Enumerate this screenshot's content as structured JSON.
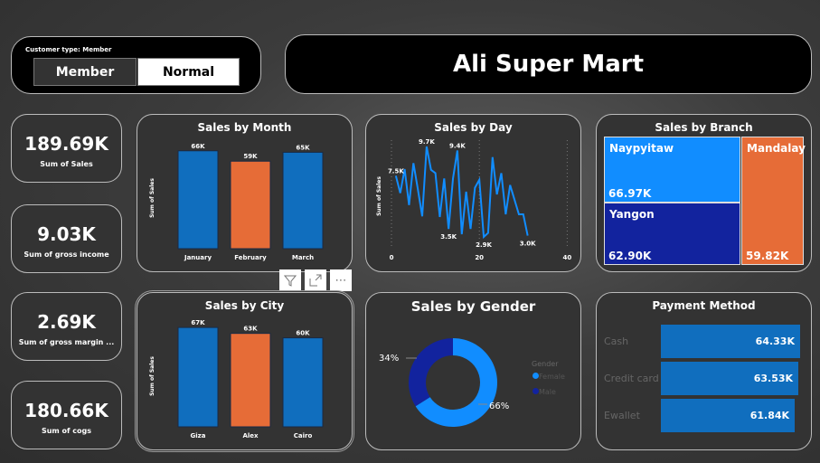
{
  "slicer": {
    "title": "Customer type: Member",
    "options": [
      "Member",
      "Normal"
    ],
    "selected": "Member"
  },
  "header": {
    "title": "Ali Super Mart"
  },
  "kpis": [
    {
      "value": "189.69K",
      "label": "Sum of Sales"
    },
    {
      "value": "9.03K",
      "label": "Sum of gross income"
    },
    {
      "value": "2.69K",
      "label": "Sum of gross margin ..."
    },
    {
      "value": "180.66K",
      "label": "Sum of cogs"
    }
  ],
  "colors": {
    "blue": "#106EBE",
    "orange": "#E66C37",
    "lightblue": "#118DFF",
    "navy": "#12239E"
  },
  "visual_toolbar": {
    "icons": [
      "filter-icon",
      "focus-mode-icon",
      "more-options-icon"
    ]
  },
  "chart_data": [
    {
      "type": "bar",
      "title": "Sales by Month",
      "ylabel": "Sum of Sales",
      "categories": [
        "January",
        "February",
        "March"
      ],
      "values": [
        66,
        59,
        65
      ],
      "labels": [
        "66K",
        "59K",
        "65K"
      ],
      "unit": "K"
    },
    {
      "type": "bar",
      "title": "Sales by City",
      "ylabel": "Sum of Sales",
      "categories": [
        "Giza",
        "Alex",
        "Cairo"
      ],
      "values": [
        67,
        63,
        60
      ],
      "labels": [
        "67K",
        "63K",
        "60K"
      ],
      "unit": "K"
    },
    {
      "type": "line",
      "title": "Sales by Day",
      "ylabel": "Sum of Sales",
      "xticks": [
        "0",
        "20",
        "40"
      ],
      "xlim": [
        0,
        40
      ],
      "x": [
        1,
        2,
        3,
        4,
        5,
        6,
        7,
        8,
        9,
        10,
        11,
        12,
        13,
        14,
        15,
        16,
        17,
        18,
        19,
        20,
        21,
        22,
        23,
        24,
        25,
        26,
        27,
        28,
        29,
        30,
        31
      ],
      "y": [
        7.5,
        6.2,
        8.0,
        5.3,
        8.45,
        6.5,
        4.45,
        9.7,
        7.95,
        7.7,
        4.4,
        7.3,
        3.5,
        7.3,
        9.4,
        3.1,
        6.3,
        3.5,
        6.6,
        7.2,
        2.9,
        3.2,
        8.9,
        6.1,
        7.7,
        4.6,
        6.8,
        5.7,
        4.6,
        4.6,
        3.0
      ],
      "unit": "K",
      "annotations": [
        {
          "x": 1,
          "label": "7.5K"
        },
        {
          "x": 8,
          "label": "9.7K"
        },
        {
          "x": 13,
          "label": "3.5K"
        },
        {
          "x": 15,
          "label": "9.4K"
        },
        {
          "x": 21,
          "label": "2.9K"
        },
        {
          "x": 31,
          "label": "3.0K"
        }
      ]
    },
    {
      "type": "pie",
      "title": "Sales by Gender",
      "legend_title": "Gender",
      "legend": "right",
      "slices": [
        {
          "name": "Female",
          "value": 66,
          "label": "66%"
        },
        {
          "name": "Male",
          "value": 34,
          "label": "34%"
        }
      ]
    },
    {
      "type": "treemap",
      "title": "Sales by Branch",
      "items": [
        {
          "name": "Naypyitaw",
          "value": "66.97K"
        },
        {
          "name": "Yangon",
          "value": "62.90K"
        },
        {
          "name": "Mandalay",
          "value": "59.82K"
        }
      ]
    },
    {
      "type": "bar",
      "orientation": "horizontal",
      "title": "Payment Method",
      "categories": [
        "Cash",
        "Credit card",
        "Ewallet"
      ],
      "values": [
        64.33,
        63.53,
        61.84
      ],
      "labels": [
        "64.33K",
        "63.53K",
        "61.84K"
      ]
    }
  ]
}
